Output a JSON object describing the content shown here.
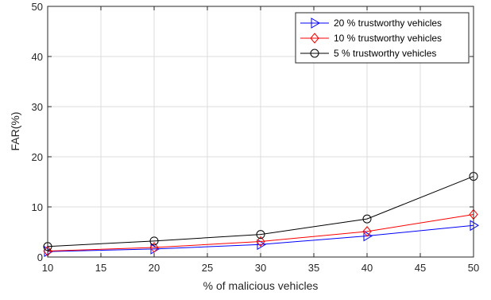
{
  "chart_data": {
    "type": "line",
    "title": "",
    "xlabel": "% of malicious vehicles",
    "ylabel": "FAR(%)",
    "x": [
      10,
      20,
      30,
      40,
      50
    ],
    "xlim": [
      10,
      50
    ],
    "ylim": [
      0,
      50
    ],
    "xticks": [
      10,
      15,
      20,
      25,
      30,
      35,
      40,
      45,
      50
    ],
    "yticks": [
      0,
      10,
      20,
      30,
      40,
      50
    ],
    "grid": true,
    "legend_position": "top-right",
    "series": [
      {
        "name": "20 % trustworthy vehicles",
        "values": [
          1.1,
          1.6,
          2.5,
          4.2,
          6.3
        ],
        "color": "#0000ff",
        "marker": "triangle-right"
      },
      {
        "name": "10 % trustworthy vehicles",
        "values": [
          1.2,
          1.9,
          3.1,
          5.1,
          8.5
        ],
        "color": "#ff0000",
        "marker": "diamond"
      },
      {
        "name": "5 % trustworthy vehicles",
        "values": [
          2.1,
          3.2,
          4.5,
          7.6,
          16.1
        ],
        "color": "#000000",
        "marker": "circle"
      }
    ]
  }
}
